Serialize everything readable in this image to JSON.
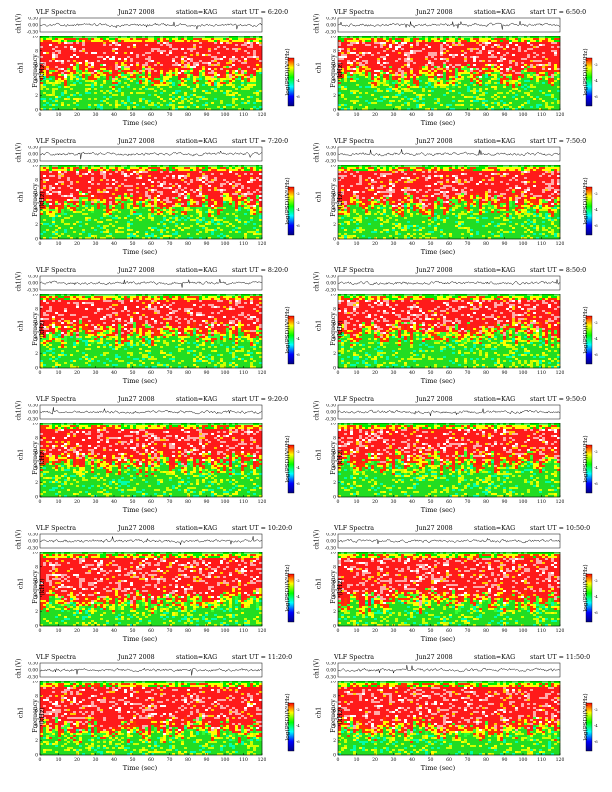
{
  "chart_data": {
    "type": "heatmap",
    "common": {
      "title": "VLF Spectra",
      "station_label": "station=KAG",
      "start_prefix": "start UT =",
      "xlabel": "Time (sec)",
      "wave_ylabel": "ch1(V)",
      "spec_ylabel_ch": "ch1",
      "spec_ylabel": "Frequency (kHz)",
      "colorbar_label": "log(PSD)(V²/Hz)",
      "x_ticks": [
        "0",
        "10",
        "20",
        "30",
        "40",
        "50",
        "60",
        "70",
        "80",
        "90",
        "100",
        "110",
        "120"
      ],
      "x_range": [
        0,
        120
      ],
      "freq_ticks": [
        "0",
        "2",
        "4",
        "6",
        "8",
        "10"
      ],
      "freq_range": [
        0,
        10
      ],
      "wave_ticks": [
        "0.30",
        "0.00",
        "-0.30"
      ],
      "wave_range": [
        -0.3,
        0.3
      ],
      "colorbar_ticks": [
        "-2",
        "-4",
        "-6"
      ],
      "colorbar_colors": [
        "#ff0000",
        "#ffff00",
        "#00ff00",
        "#00ffff",
        "#0000ff",
        "#000088"
      ]
    },
    "panels": [
      {
        "date": "Jun27 2008",
        "start": "6:20:0"
      },
      {
        "date": "Jun27 2008",
        "start": "6:50:0"
      },
      {
        "date": "Jun27 2008",
        "start": "7:20:0"
      },
      {
        "date": "Jun27 2008",
        "start": "7:50:0"
      },
      {
        "date": "Jun27 2008",
        "start": "8:20:0"
      },
      {
        "date": "Jun27 2008",
        "start": "8:50:0"
      },
      {
        "date": "Jun27 2008",
        "start": "9:20:0"
      },
      {
        "date": "Jun27 2008",
        "start": "9:50:0"
      },
      {
        "date": "Jun27 2008",
        "start": "10:20:0"
      },
      {
        "date": "Jun27 2008",
        "start": "10:50:0"
      },
      {
        "date": "Jun27 2008",
        "start": "11:20:0"
      },
      {
        "date": "Jun27 2008",
        "start": "11:50:0"
      }
    ]
  }
}
